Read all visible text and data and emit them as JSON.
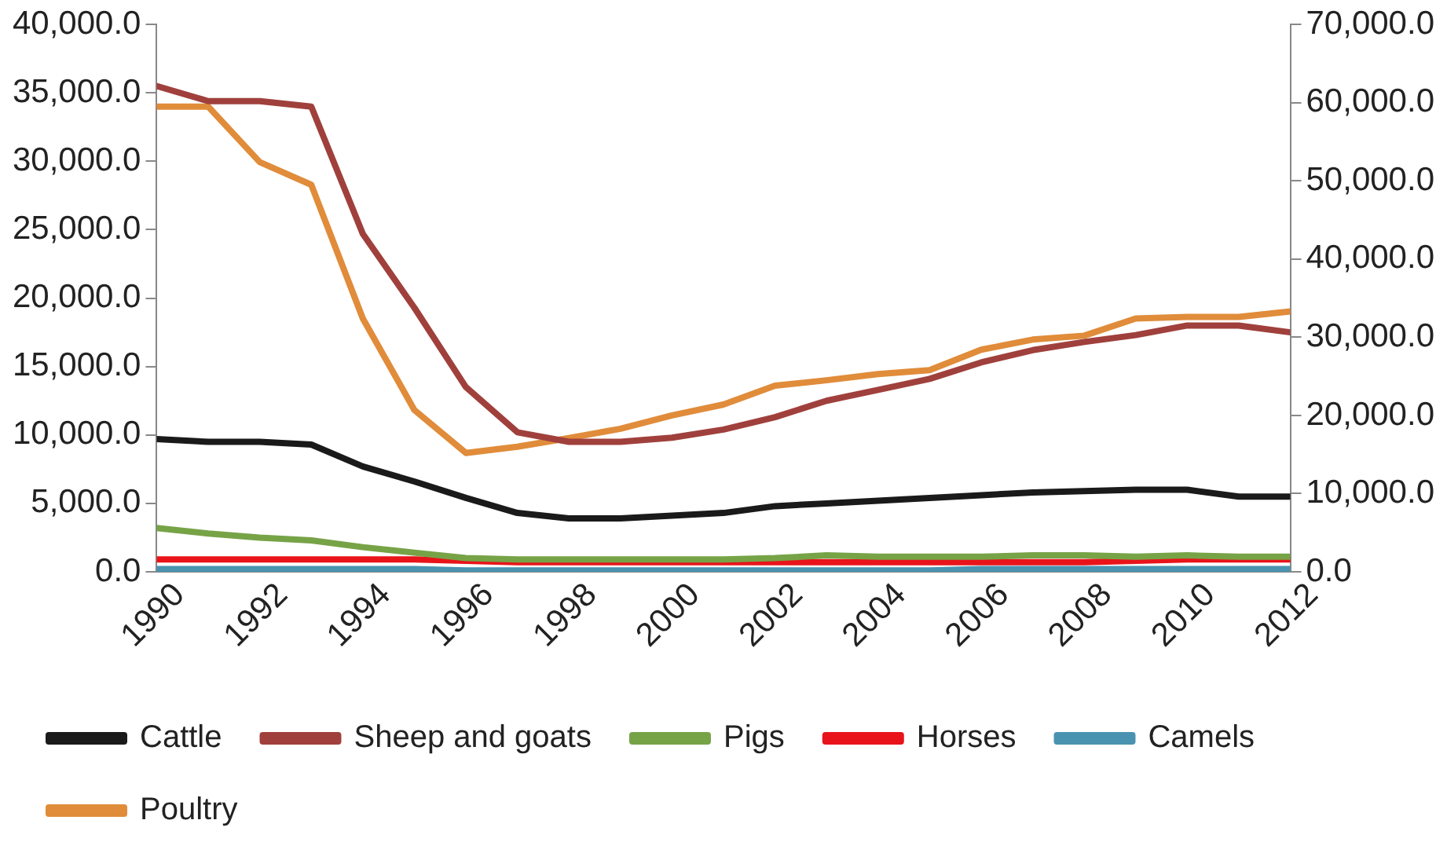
{
  "chart_data": {
    "type": "line",
    "x": [
      1990,
      1991,
      1992,
      1993,
      1994,
      1995,
      1996,
      1997,
      1998,
      1999,
      2000,
      2001,
      2002,
      2003,
      2004,
      2005,
      2006,
      2007,
      2008,
      2009,
      2010,
      2011,
      2012
    ],
    "xlim": [
      1990,
      2012
    ],
    "xticks": [
      1990,
      1992,
      1994,
      1996,
      1998,
      2000,
      2002,
      2004,
      2006,
      2008,
      2010,
      2012
    ],
    "ylim": [
      0,
      40000
    ],
    "yticks": [
      {
        "value": 0,
        "label": "0.0"
      },
      {
        "value": 5000,
        "label": "5,000.0"
      },
      {
        "value": 10000,
        "label": "10,000.0"
      },
      {
        "value": 15000,
        "label": "15,000.0"
      },
      {
        "value": 20000,
        "label": "20,000.0"
      },
      {
        "value": 25000,
        "label": "25,000.0"
      },
      {
        "value": 30000,
        "label": "30,000.0"
      },
      {
        "value": 35000,
        "label": "35,000.0"
      },
      {
        "value": 40000,
        "label": "40,000.0"
      }
    ],
    "y2lim": [
      0,
      70000
    ],
    "y2ticks": [
      {
        "value": 0,
        "label": "0.0"
      },
      {
        "value": 10000,
        "label": "10,000.0"
      },
      {
        "value": 20000,
        "label": "20,000.0"
      },
      {
        "value": 30000,
        "label": "30,000.0"
      },
      {
        "value": 40000,
        "label": "40,000.0"
      },
      {
        "value": 50000,
        "label": "50,000.0"
      },
      {
        "value": 60000,
        "label": "60,000.0"
      },
      {
        "value": 70000,
        "label": "70,000.0"
      }
    ],
    "grid": false,
    "legend": "bottom",
    "marker": "none",
    "line_style": "solid",
    "series": [
      {
        "name": "Cattle",
        "color": "#1a1a1a",
        "values": [
          9700,
          9500,
          9500,
          9300,
          7700,
          6600,
          5400,
          4300,
          3900,
          3900,
          4100,
          4300,
          4800,
          5000,
          5200,
          5400,
          5600,
          5800,
          5900,
          6000,
          6000,
          5500,
          5500
        ]
      },
      {
        "name": "Sheep and goats",
        "color": "#a0403c",
        "values": [
          35500,
          34400,
          34400,
          34000,
          24700,
          19300,
          13500,
          10200,
          9500,
          9500,
          9800,
          10400,
          11300,
          12500,
          13300,
          14100,
          15300,
          16200,
          16800,
          17300,
          18000,
          18000,
          17500
        ]
      },
      {
        "name": "Pigs",
        "color": "#77a347",
        "values": [
          3200,
          2800,
          2500,
          2300,
          1800,
          1400,
          1000,
          900,
          900,
          900,
          900,
          900,
          1000,
          1200,
          1100,
          1100,
          1100,
          1200,
          1200,
          1100,
          1200,
          1100,
          1100
        ]
      },
      {
        "name": "Horses",
        "color": "#e8141a",
        "values": [
          900,
          900,
          900,
          900,
          900,
          900,
          800,
          700,
          700,
          700,
          700,
          700,
          700,
          700,
          700,
          700,
          700,
          700,
          700,
          800,
          900,
          900,
          900
        ]
      },
      {
        "name": "Camels",
        "color": "#4a93b0",
        "values": [
          200,
          200,
          200,
          200,
          200,
          200,
          100,
          100,
          100,
          100,
          100,
          100,
          100,
          100,
          100,
          100,
          200,
          200,
          200,
          200,
          200,
          200,
          200
        ]
      },
      {
        "name": "Poultry",
        "color": "#e08c3a",
        "axis": "y2",
        "values": [
          59500,
          59500,
          52400,
          49500,
          32400,
          20700,
          15200,
          16000,
          17100,
          18300,
          20000,
          21400,
          23800,
          24500,
          25300,
          25800,
          28400,
          29700,
          30200,
          32400,
          32600,
          32600,
          33300
        ]
      }
    ]
  }
}
